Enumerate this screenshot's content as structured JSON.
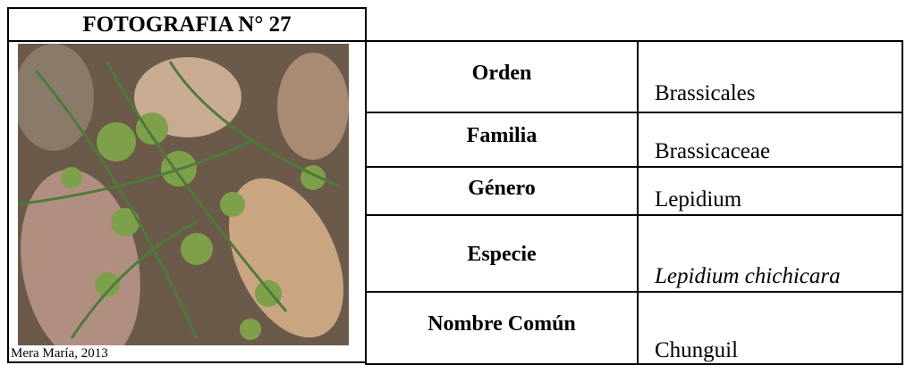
{
  "photo": {
    "title": "FOTOGRAFIA N° 27",
    "caption": "Mera María, 2013"
  },
  "table": {
    "rows": [
      [
        "Orden",
        "Brassicales"
      ],
      [
        "Familia",
        "Brassicaceae"
      ],
      [
        "Género",
        "Lepidium"
      ],
      [
        "Especie",
        "Lepidium chichicara"
      ],
      [
        "Nombre Común",
        "Chunguil"
      ]
    ]
  }
}
